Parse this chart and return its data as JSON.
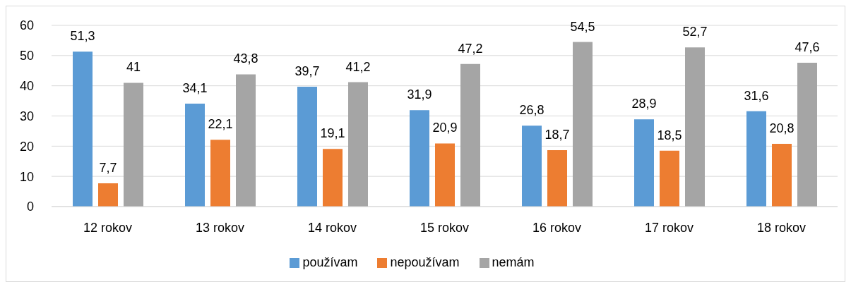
{
  "chart_data": {
    "type": "bar",
    "categories": [
      "12 rokov",
      "13 rokov",
      "14 rokov",
      "15 rokov",
      "16 rokov",
      "17 rokov",
      "18 rokov"
    ],
    "series": [
      {
        "name": "používam",
        "color": "#5b9bd5",
        "values": [
          51.3,
          34.1,
          39.7,
          31.9,
          26.8,
          28.9,
          31.6
        ],
        "value_labels": [
          "51,3",
          "34,1",
          "39,7",
          "31,9",
          "26,8",
          "28,9",
          "31,6"
        ]
      },
      {
        "name": "nepoužívam",
        "color": "#ed7d31",
        "values": [
          7.7,
          22.1,
          19.1,
          20.9,
          18.7,
          18.5,
          20.8
        ],
        "value_labels": [
          "7,7",
          "22,1",
          "19,1",
          "20,9",
          "18,7",
          "18,5",
          "20,8"
        ]
      },
      {
        "name": "nemám",
        "color": "#a5a5a5",
        "values": [
          41,
          43.8,
          41.2,
          47.2,
          54.5,
          52.7,
          47.6
        ],
        "value_labels": [
          "41",
          "43,8",
          "41,2",
          "47,2",
          "54,5",
          "52,7",
          "47,6"
        ]
      }
    ],
    "ylim": [
      0,
      60
    ],
    "yticks": [
      0,
      10,
      20,
      30,
      40,
      50,
      60
    ],
    "grid": "y",
    "legend": "bottom"
  }
}
